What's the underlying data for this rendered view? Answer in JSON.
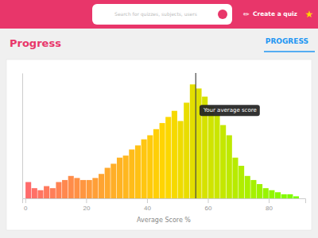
{
  "page": {
    "nav_color": "#e8366a",
    "background_color": "#f0f0f0",
    "search_placeholder": "Search for quizzes, subjects, users",
    "pencil": "✏",
    "create_button": "Create a quiz",
    "star": "★",
    "tab": "PROGRESS"
  },
  "chart_data": {
    "type": "histogram",
    "title": "Progress",
    "xlabel": "Average Score %",
    "bins": [
      0,
      2,
      4,
      6,
      8,
      10,
      12,
      14,
      16,
      18,
      20,
      22,
      24,
      26,
      28,
      30,
      32,
      34,
      36,
      38,
      40,
      42,
      44,
      46,
      48,
      50,
      52,
      54,
      56,
      58,
      60,
      62,
      64,
      66,
      68,
      70,
      72,
      74,
      76,
      78,
      80,
      82,
      84,
      86,
      88,
      90
    ],
    "values": [
      8,
      5,
      4,
      6,
      5,
      8,
      9,
      11,
      10,
      9,
      9,
      10,
      12,
      15,
      17,
      20,
      21,
      24,
      26,
      29,
      31,
      34,
      37,
      40,
      43,
      38,
      47,
      56,
      54,
      50,
      45,
      41,
      36,
      31,
      20,
      16,
      11,
      9,
      7,
      5,
      4,
      3,
      2,
      2,
      1
    ],
    "colors": [
      "#ff6b6b",
      "#ff7066",
      "#ff7562",
      "#ff795d",
      "#ff7e58",
      "#ff8353",
      "#ff884f",
      "#ff8c4a",
      "#ff9145",
      "#ff9640",
      "#ff9b3c",
      "#ff9f37",
      "#ffa432",
      "#ffa92d",
      "#ffae28",
      "#ffb324",
      "#ffb71f",
      "#ffbc1a",
      "#ffc115",
      "#ffc611",
      "#ffca0c",
      "#ffcf07",
      "#ffd402",
      "#fcd700",
      "#f6d900",
      "#efdb00",
      "#e9dd00",
      "#e3de00",
      "#dde000",
      "#d6e200",
      "#d0e400",
      "#cae600",
      "#c4e700",
      "#bee900",
      "#b7eb00",
      "#b1ed00",
      "#abef00",
      "#a5f000",
      "#9ef200",
      "#98f400",
      "#92f600",
      "#8cf800",
      "#85fa00",
      "#7ffb00",
      "#79fd00"
    ],
    "xlim": [
      -1,
      92
    ],
    "xticks": [
      0,
      20,
      40,
      60,
      80
    ],
    "ylim": [
      0,
      61.6
    ],
    "tick_labels": "x",
    "grid": false,
    "annotations": [
      {
        "x": 56,
        "text": "Your average score"
      }
    ]
  }
}
